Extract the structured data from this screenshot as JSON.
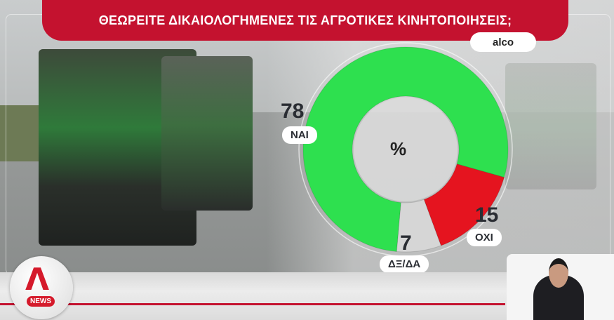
{
  "title": "ΘΕΩΡΕΙΤΕ ΔΙΚΑΙΟΛΟΓΗΜΕΝΕΣ ΤΙΣ ΑΓΡΟΤΙΚΕΣ ΚΙΝΗΤΟΠΟΙΗΣΕΙΣ;",
  "source": "alco",
  "logo": {
    "text": "NEWS"
  },
  "chart_data": {
    "type": "pie",
    "style": "donut",
    "center_label": "%",
    "categories": [
      "ΝΑΙ",
      "ΟΧΙ",
      "ΔΞ/ΔΑ"
    ],
    "values": [
      78,
      15,
      7
    ],
    "value_labels": [
      "78",
      "15",
      "7"
    ],
    "colors": [
      "#2ee04f",
      "#e5141f",
      "#d6d6d6"
    ]
  }
}
